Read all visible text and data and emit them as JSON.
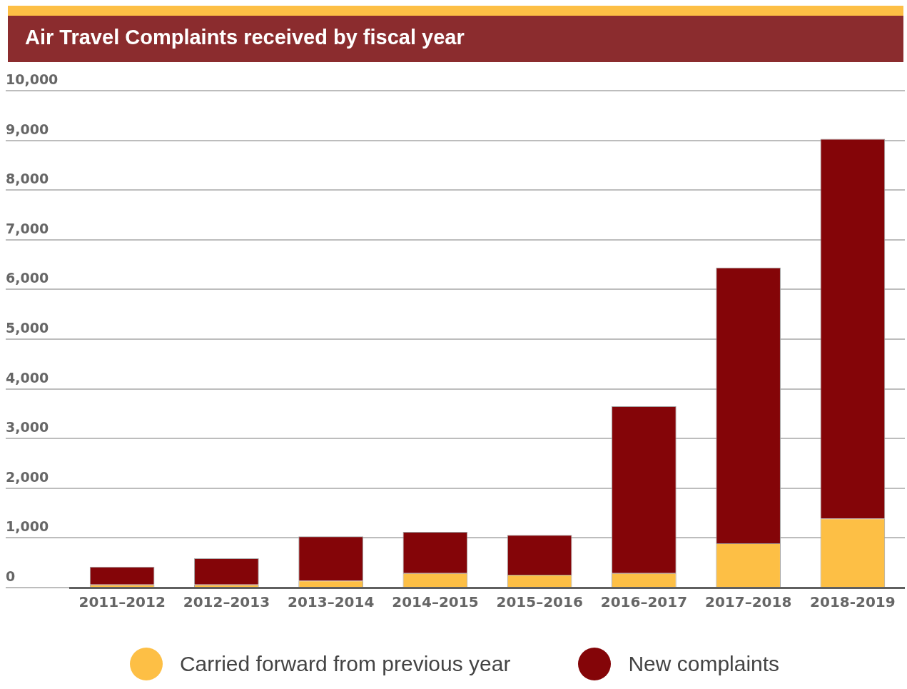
{
  "chart_data": {
    "type": "bar",
    "title": "Air Travel Complaints received by fiscal year",
    "categories": [
      "2011–2012",
      "2012–2013",
      "2013–2014",
      "2014–2015",
      "2015–2016",
      "2016–2017",
      "2017–2018",
      "2018-2019"
    ],
    "series": [
      {
        "name": "Carried forward from previous year",
        "color": "#fdbf45",
        "values": [
          60,
          60,
          140,
          290,
          260,
          290,
          890,
          1390
        ]
      },
      {
        "name": "New complaints",
        "color": "#840508",
        "values": [
          360,
          530,
          890,
          830,
          800,
          3360,
          5550,
          7640
        ]
      }
    ],
    "stacked": true,
    "ylim": [
      0,
      10000
    ],
    "yticks": [
      0,
      {
        "value": 1000,
        "label": "1,000"
      },
      {
        "value": 2000,
        "label": "2,000"
      },
      {
        "value": 3000,
        "label": "3,000"
      },
      {
        "value": 4000,
        "label": "4,000"
      },
      {
        "value": 5000,
        "label": "5,000"
      },
      {
        "value": 6000,
        "label": "6,000"
      },
      {
        "value": 7000,
        "label": "7,000"
      },
      {
        "value": 8000,
        "label": "8,000"
      },
      {
        "value": 9000,
        "label": "9,000"
      },
      {
        "value": 10000,
        "label": "10,000"
      }
    ],
    "grid": "y",
    "legend": "bottom"
  }
}
